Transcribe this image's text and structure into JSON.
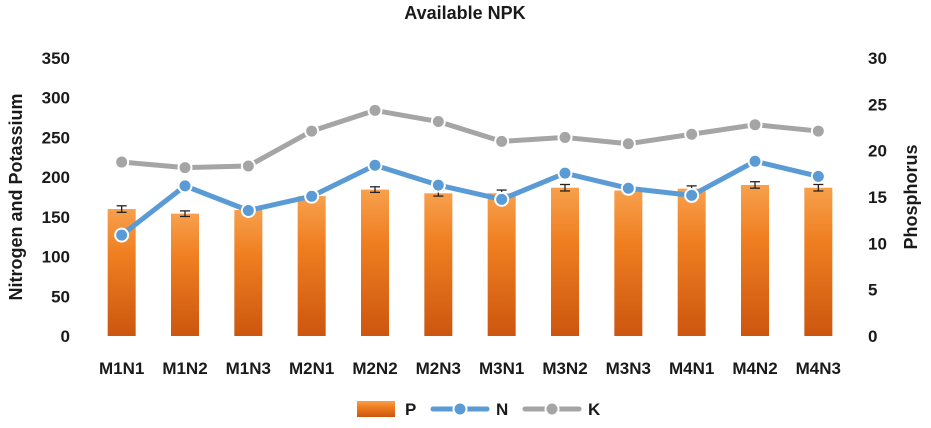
{
  "chart_data": {
    "type": "bar",
    "title": "Available NPK",
    "y_left_label": "Nitrogen and Potassium",
    "y_right_label": "Phosphorus",
    "y_left_range": [
      0,
      350
    ],
    "y_left_ticks": [
      "0",
      "50",
      "100",
      "150",
      "200",
      "250",
      "300",
      "350"
    ],
    "y_right_range": [
      0,
      30
    ],
    "y_right_ticks": [
      "0",
      "5",
      "10",
      "15",
      "20",
      "25",
      "30"
    ],
    "categories": [
      "M1N1",
      "M1N2",
      "M1N3",
      "M2N1",
      "M2N2",
      "M2N3",
      "M3N1",
      "M3N2",
      "M3N3",
      "M4N1",
      "M4N2",
      "M4N3"
    ],
    "series": [
      {
        "name": "P",
        "type": "bar",
        "axis": "right",
        "color": "#e8691c",
        "values": [
          13.7,
          13.2,
          13.6,
          15.1,
          15.8,
          15.4,
          15.4,
          16.0,
          15.7,
          15.9,
          16.3,
          16.0
        ],
        "errors": [
          0.35,
          0.3,
          0.0,
          0.0,
          0.3,
          0.3,
          0.35,
          0.35,
          0.0,
          0.3,
          0.35,
          0.35
        ]
      },
      {
        "name": "N",
        "type": "line",
        "axis": "left",
        "color": "#5b9bd5",
        "values": [
          127,
          189,
          158,
          176,
          215,
          190,
          172,
          205,
          186,
          177,
          220,
          201
        ]
      },
      {
        "name": "K",
        "type": "line",
        "axis": "left",
        "color": "#a5a5a5",
        "values": [
          219,
          212,
          214,
          258,
          284,
          270,
          245,
          250,
          242,
          254,
          266,
          258
        ]
      }
    ],
    "legend_position": "bottom",
    "grid": false
  }
}
